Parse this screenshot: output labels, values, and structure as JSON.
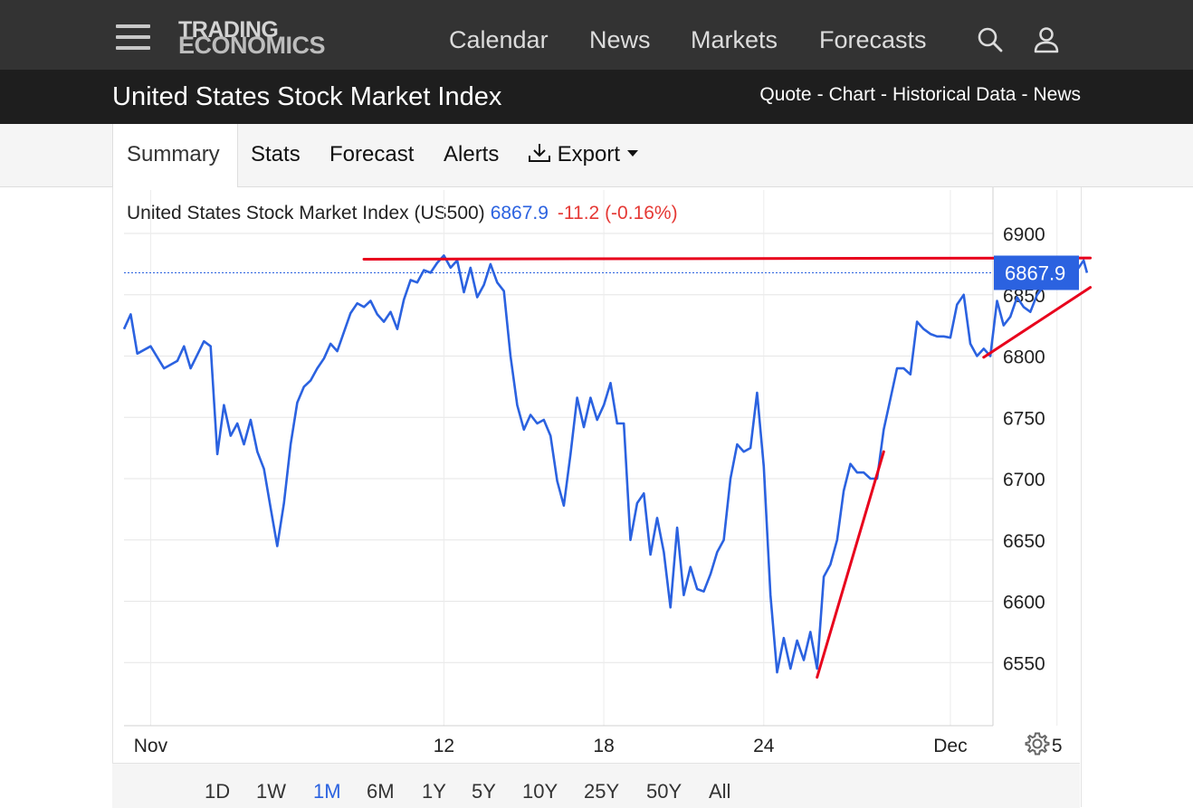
{
  "header": {
    "logo_line1": "TRADING",
    "logo_line2": "ECONOMICS",
    "nav": [
      "Calendar",
      "News",
      "Markets",
      "Forecasts"
    ],
    "icons": [
      "menu-icon",
      "search-icon",
      "user-icon"
    ]
  },
  "subheader": {
    "title": "United States Stock Market Index",
    "links": [
      "Quote",
      "Chart",
      "Historical Data",
      "News"
    ]
  },
  "tabs": {
    "summary": "Summary",
    "stats": "Stats",
    "forecast": "Forecast",
    "alerts": "Alerts",
    "export": "Export"
  },
  "quote": {
    "name": "United States Stock Market Index (US500)",
    "price": "6867.9",
    "change": "-11.2 (-0.16%)",
    "price_tag": "6867.9"
  },
  "ranges": [
    "1D",
    "1W",
    "1M",
    "6M",
    "1Y",
    "5Y",
    "10Y",
    "25Y",
    "50Y",
    "All"
  ],
  "active_range": "1M",
  "colors": {
    "line": "#2b62e0",
    "trend": "#e8001c",
    "negative": "#e53935",
    "header_bg": "#333333",
    "subheader_bg": "#1e1e1e"
  },
  "chart_data": {
    "type": "line",
    "ylim": [
      6500,
      6900
    ],
    "yticks": [
      6550,
      6600,
      6650,
      6700,
      6750,
      6800,
      6850,
      6900
    ],
    "xticks": [
      {
        "label": "Nov",
        "x": "2025-11-01"
      },
      {
        "label": "12",
        "x": "2025-11-12"
      },
      {
        "label": "18",
        "x": "2025-11-18"
      },
      {
        "label": "24",
        "x": "2025-11-24"
      },
      {
        "label": "Dec",
        "x": "2025-12-01"
      },
      {
        "label": "5",
        "x": "2025-12-05"
      }
    ],
    "series": [
      {
        "values": [
          [
            "2025-10-31T00:00",
            6822
          ],
          [
            "2025-10-31T06:00",
            6834
          ],
          [
            "2025-10-31T12:00",
            6802
          ],
          [
            "2025-11-01T00:00",
            6808
          ],
          [
            "2025-11-01T12:00",
            6790
          ],
          [
            "2025-11-02T00:00",
            6796
          ],
          [
            "2025-11-02T06:00",
            6808
          ],
          [
            "2025-11-02T12:00",
            6790
          ],
          [
            "2025-11-03T00:00",
            6812
          ],
          [
            "2025-11-03T06:00",
            6808
          ],
          [
            "2025-11-03T12:00",
            6720
          ],
          [
            "2025-11-03T18:00",
            6760
          ],
          [
            "2025-11-04T00:00",
            6735
          ],
          [
            "2025-11-04T06:00",
            6745
          ],
          [
            "2025-11-04T12:00",
            6728
          ],
          [
            "2025-11-04T18:00",
            6748
          ],
          [
            "2025-11-05T00:00",
            6722
          ],
          [
            "2025-11-05T06:00",
            6708
          ],
          [
            "2025-11-05T12:00",
            6676
          ],
          [
            "2025-11-05T18:00",
            6645
          ],
          [
            "2025-11-06T00:00",
            6680
          ],
          [
            "2025-11-06T06:00",
            6728
          ],
          [
            "2025-11-06T12:00",
            6762
          ],
          [
            "2025-11-06T18:00",
            6775
          ],
          [
            "2025-11-07T00:00",
            6780
          ],
          [
            "2025-11-07T06:00",
            6790
          ],
          [
            "2025-11-07T12:00",
            6798
          ],
          [
            "2025-11-07T18:00",
            6810
          ],
          [
            "2025-11-08T00:00",
            6804
          ],
          [
            "2025-11-08T12:00",
            6835
          ],
          [
            "2025-11-08T18:00",
            6843
          ],
          [
            "2025-11-09T00:00",
            6840
          ],
          [
            "2025-11-09T06:00",
            6845
          ],
          [
            "2025-11-09T12:00",
            6834
          ],
          [
            "2025-11-09T18:00",
            6828
          ],
          [
            "2025-11-10T00:00",
            6836
          ],
          [
            "2025-11-10T06:00",
            6822
          ],
          [
            "2025-11-10T12:00",
            6846
          ],
          [
            "2025-11-10T18:00",
            6862
          ],
          [
            "2025-11-11T00:00",
            6860
          ],
          [
            "2025-11-11T06:00",
            6870
          ],
          [
            "2025-11-11T12:00",
            6868
          ],
          [
            "2025-11-11T18:00",
            6876
          ],
          [
            "2025-11-12T00:00",
            6882
          ],
          [
            "2025-11-12T06:00",
            6872
          ],
          [
            "2025-11-12T12:00",
            6878
          ],
          [
            "2025-11-12T18:00",
            6852
          ],
          [
            "2025-11-13T00:00",
            6872
          ],
          [
            "2025-11-13T06:00",
            6848
          ],
          [
            "2025-11-13T12:00",
            6858
          ],
          [
            "2025-11-13T18:00",
            6875
          ],
          [
            "2025-11-14T00:00",
            6860
          ],
          [
            "2025-11-14T06:00",
            6853
          ],
          [
            "2025-11-14T12:00",
            6800
          ],
          [
            "2025-11-14T18:00",
            6760
          ],
          [
            "2025-11-15T00:00",
            6740
          ],
          [
            "2025-11-15T06:00",
            6752
          ],
          [
            "2025-11-15T12:00",
            6745
          ],
          [
            "2025-11-15T18:00",
            6748
          ],
          [
            "2025-11-16T00:00",
            6735
          ],
          [
            "2025-11-16T06:00",
            6698
          ],
          [
            "2025-11-16T12:00",
            6678
          ],
          [
            "2025-11-16T18:00",
            6720
          ],
          [
            "2025-11-17T00:00",
            6766
          ],
          [
            "2025-11-17T06:00",
            6742
          ],
          [
            "2025-11-17T12:00",
            6766
          ],
          [
            "2025-11-17T18:00",
            6748
          ],
          [
            "2025-11-18T00:00",
            6760
          ],
          [
            "2025-11-18T06:00",
            6778
          ],
          [
            "2025-11-18T12:00",
            6745
          ],
          [
            "2025-11-18T18:00",
            6745
          ],
          [
            "2025-11-19T00:00",
            6650
          ],
          [
            "2025-11-19T06:00",
            6680
          ],
          [
            "2025-11-19T12:00",
            6688
          ],
          [
            "2025-11-19T18:00",
            6638
          ],
          [
            "2025-11-20T00:00",
            6668
          ],
          [
            "2025-11-20T06:00",
            6640
          ],
          [
            "2025-11-20T12:00",
            6595
          ],
          [
            "2025-11-20T18:00",
            6660
          ],
          [
            "2025-11-21T00:00",
            6605
          ],
          [
            "2025-11-21T06:00",
            6628
          ],
          [
            "2025-11-21T12:00",
            6610
          ],
          [
            "2025-11-21T18:00",
            6608
          ],
          [
            "2025-11-22T00:00",
            6622
          ],
          [
            "2025-11-22T06:00",
            6640
          ],
          [
            "2025-11-22T12:00",
            6650
          ],
          [
            "2025-11-22T18:00",
            6700
          ],
          [
            "2025-11-23T00:00",
            6728
          ],
          [
            "2025-11-23T06:00",
            6722
          ],
          [
            "2025-11-23T12:00",
            6725
          ],
          [
            "2025-11-23T18:00",
            6770
          ],
          [
            "2025-11-24T00:00",
            6710
          ],
          [
            "2025-11-24T06:00",
            6605
          ],
          [
            "2025-11-24T12:00",
            6542
          ],
          [
            "2025-11-24T18:00",
            6570
          ],
          [
            "2025-11-25T00:00",
            6545
          ],
          [
            "2025-11-25T06:00",
            6568
          ],
          [
            "2025-11-25T12:00",
            6552
          ],
          [
            "2025-11-25T18:00",
            6575
          ],
          [
            "2025-11-26T00:00",
            6545
          ],
          [
            "2025-11-26T06:00",
            6620
          ],
          [
            "2025-11-26T12:00",
            6630
          ],
          [
            "2025-11-26T18:00",
            6650
          ],
          [
            "2025-11-27T00:00",
            6690
          ],
          [
            "2025-11-27T06:00",
            6712
          ],
          [
            "2025-11-27T12:00",
            6705
          ],
          [
            "2025-11-27T18:00",
            6705
          ],
          [
            "2025-11-28T00:00",
            6700
          ],
          [
            "2025-11-28T06:00",
            6700
          ],
          [
            "2025-11-28T12:00",
            6740
          ],
          [
            "2025-11-28T18:00",
            6765
          ],
          [
            "2025-11-29T00:00",
            6790
          ],
          [
            "2025-11-29T06:00",
            6790
          ],
          [
            "2025-11-29T12:00",
            6785
          ],
          [
            "2025-11-29T18:00",
            6828
          ],
          [
            "2025-11-30T00:00",
            6822
          ],
          [
            "2025-11-30T06:00",
            6818
          ],
          [
            "2025-11-30T12:00",
            6816
          ],
          [
            "2025-11-30T18:00",
            6816
          ],
          [
            "2025-12-01T00:00",
            6815
          ],
          [
            "2025-12-01T06:00",
            6842
          ],
          [
            "2025-12-01T12:00",
            6850
          ],
          [
            "2025-12-01T18:00",
            6810
          ],
          [
            "2025-12-02T00:00",
            6800
          ],
          [
            "2025-12-02T06:00",
            6806
          ],
          [
            "2025-12-02T12:00",
            6800
          ],
          [
            "2025-12-02T18:00",
            6845
          ],
          [
            "2025-12-03T00:00",
            6825
          ],
          [
            "2025-12-03T06:00",
            6832
          ],
          [
            "2025-12-03T12:00",
            6848
          ],
          [
            "2025-12-03T18:00",
            6840
          ],
          [
            "2025-12-04T00:00",
            6836
          ],
          [
            "2025-12-04T06:00",
            6850
          ],
          [
            "2025-12-04T12:00",
            6857
          ],
          [
            "2025-12-04T18:00",
            6862
          ],
          [
            "2025-12-05T00:00",
            6858
          ],
          [
            "2025-12-05T06:00",
            6858
          ],
          [
            "2025-12-05T12:00",
            6862
          ],
          [
            "2025-12-05T18:00",
            6870
          ],
          [
            "2025-12-06T00:00",
            6878
          ],
          [
            "2025-12-06T03:00",
            6867.9
          ]
        ]
      }
    ],
    "annotations": [
      {
        "kind": "trendline",
        "from": [
          "2025-11-09T00:00",
          6879
        ],
        "to": [
          "2025-12-06T06:00",
          6880
        ]
      },
      {
        "kind": "trendline",
        "from": [
          "2025-11-26T00:00",
          6538
        ],
        "to": [
          "2025-11-28T12:00",
          6722
        ]
      },
      {
        "kind": "trendline",
        "from": [
          "2025-12-02T06:00",
          6799
        ],
        "to": [
          "2025-12-06T06:00",
          6856
        ]
      }
    ],
    "current_value": 6867.9,
    "grid": true
  }
}
